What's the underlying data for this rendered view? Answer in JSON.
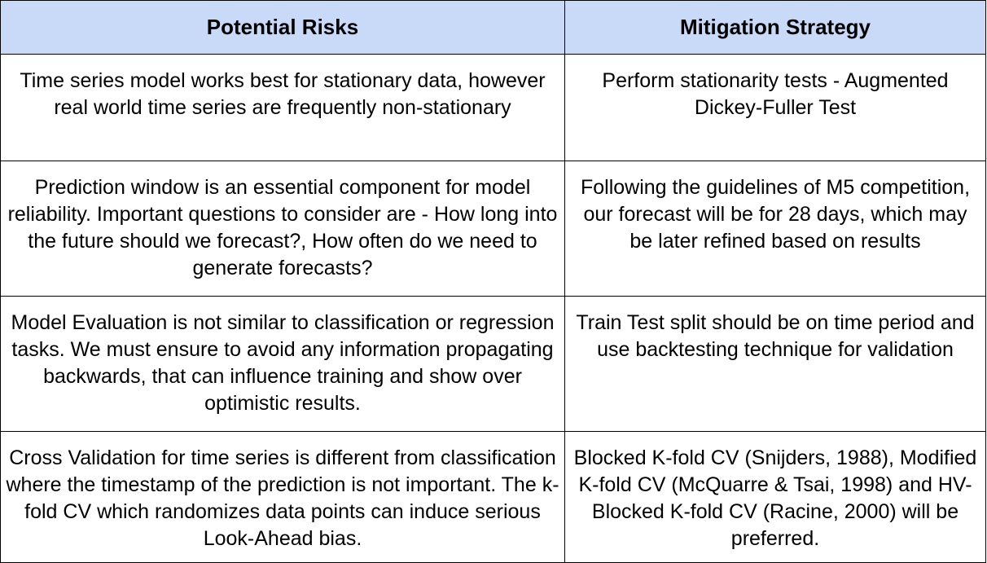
{
  "table": {
    "header_bg": "#c9daf8",
    "columns": [
      "Potential Risks",
      "Mitigation Strategy"
    ],
    "rows": [
      {
        "risk": "Time series model works best for stationary data, however real world time series are frequently non-stationary",
        "mitigation": "Perform stationarity tests - Augmented Dickey-Fuller Test"
      },
      {
        "risk": "Prediction window is an essential component for model reliability.  Important questions to consider are - How long into the future should we forecast?, How often do we need to generate forecasts?",
        "mitigation": "Following the guidelines of M5 competition, our forecast will be for 28 days, which may be later refined based on results"
      },
      {
        "risk": "Model Evaluation is not similar to classification or regression tasks. We must ensure to avoid any information propagating backwards, that can influence training and show over optimistic results.",
        "mitigation": "Train Test split should be on time period and use backtesting technique for validation"
      },
      {
        "risk": "Cross Validation for time series is different from classification where the timestamp of the prediction is not important. The k-fold CV which randomizes data points can induce serious Look-Ahead bias.",
        "mitigation": "Blocked K-fold CV (Snijders, 1988), Modified K-fold CV (McQuarre & Tsai, 1998) and HV-Blocked K-fold CV (Racine, 2000) will be preferred."
      }
    ]
  }
}
